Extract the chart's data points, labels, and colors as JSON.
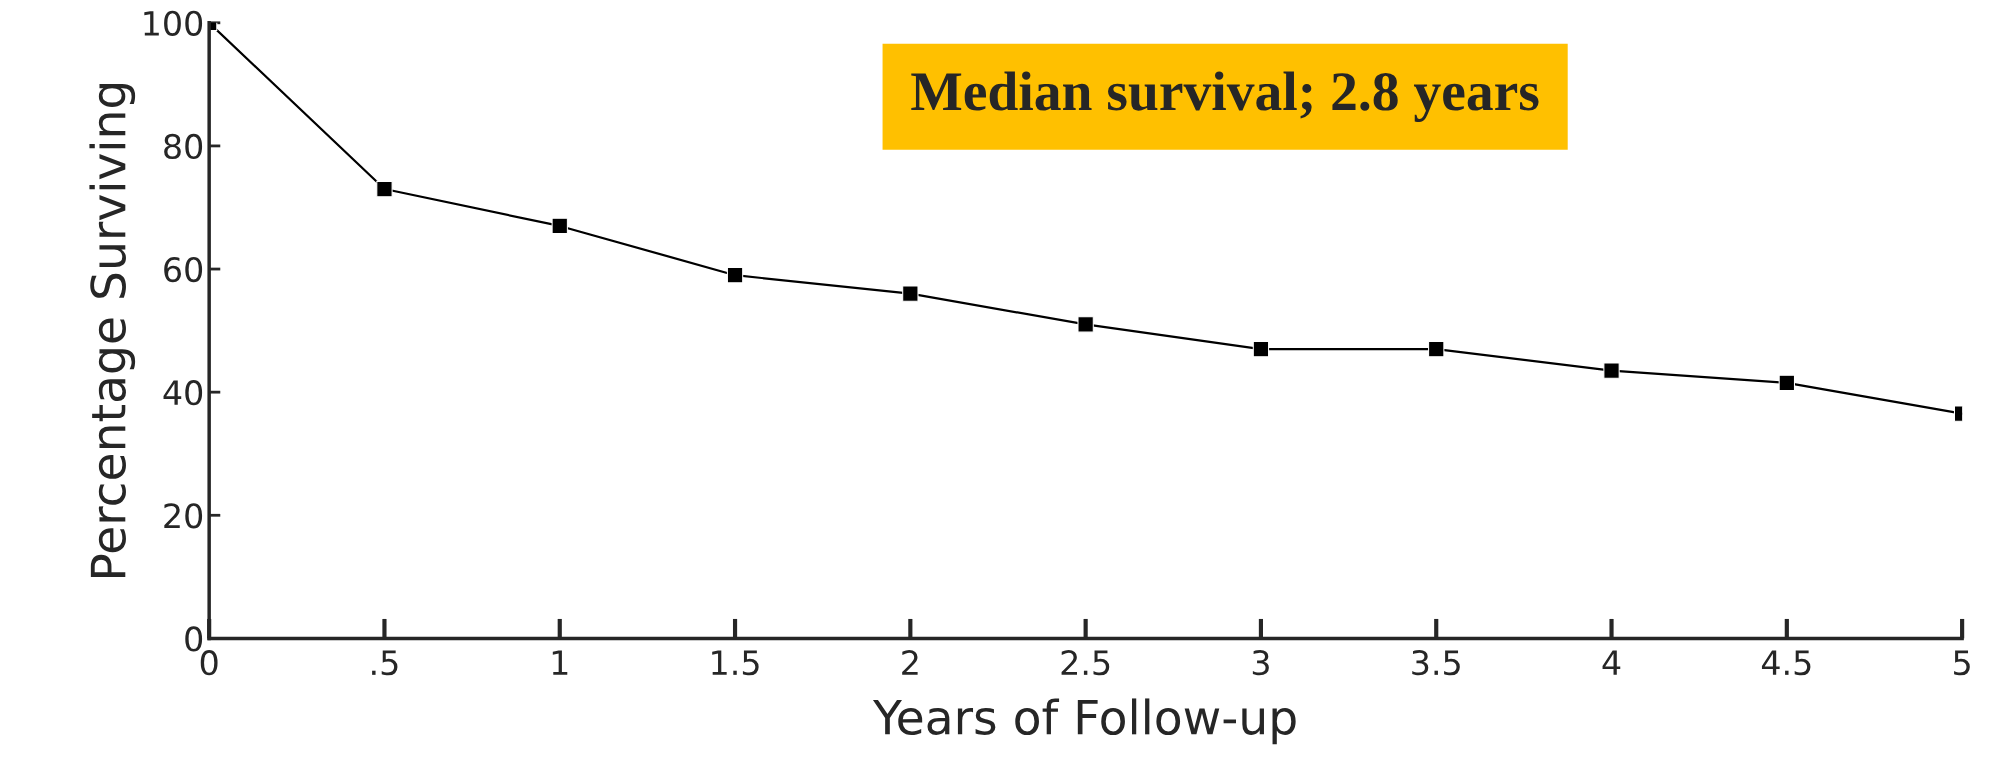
{
  "chart_data": {
    "type": "line",
    "xlabel": "Years of Follow-up",
    "ylabel": "Percentage Surviving",
    "x": [
      0,
      0.5,
      1,
      1.5,
      2,
      2.5,
      3,
      3.5,
      4,
      4.5,
      5
    ],
    "series": [
      {
        "color": "#000000",
        "values": [
          100,
          73,
          67,
          59,
          56,
          51,
          47,
          47,
          43.5,
          41.5,
          36.5
        ]
      }
    ],
    "xlim": [
      0,
      5
    ],
    "ylim": [
      0,
      100
    ],
    "xticks": [
      0,
      {
        "value": 0.5,
        "label": ".5"
      },
      1,
      1.5,
      2,
      2.5,
      3,
      3.5,
      4,
      4.5,
      5
    ],
    "yticks": [
      0,
      20,
      40,
      60,
      80,
      100
    ],
    "annotations": [
      "Median survival; 2.8 years"
    ],
    "marker": "square",
    "line_style": "solid",
    "grid": false,
    "legend": false
  }
}
